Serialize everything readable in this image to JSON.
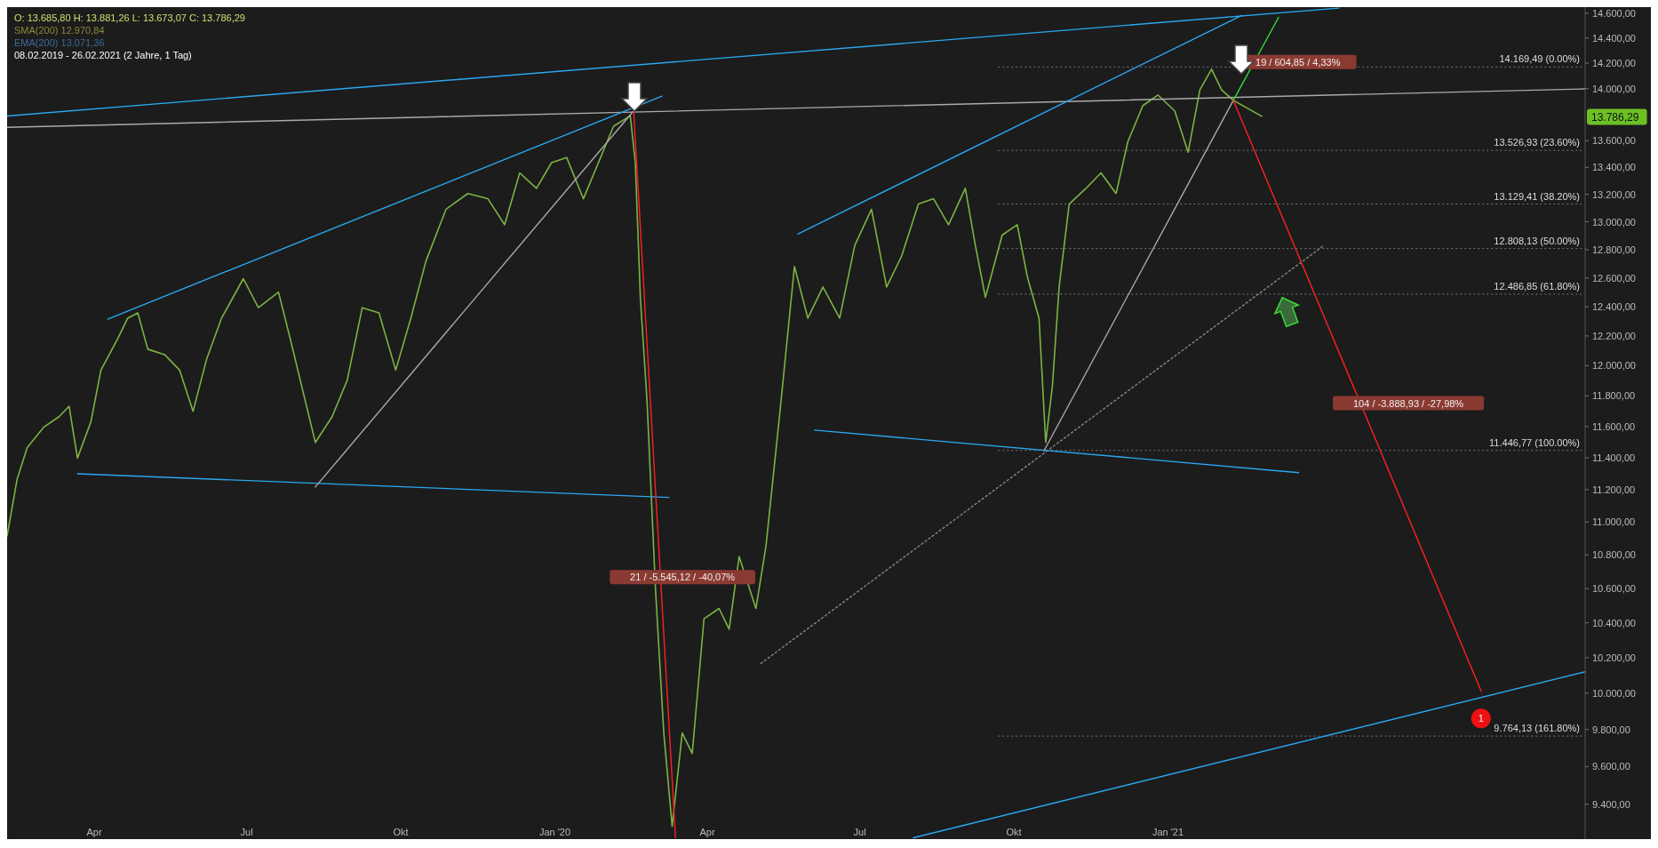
{
  "chart_data": {
    "type": "line",
    "log": "y",
    "xlim": [
      "2019-02-08",
      "2021-09-07"
    ],
    "ylim": [
      9220,
      14650
    ],
    "xticks": [
      {
        "value": "2019-04-01",
        "label": "Apr"
      },
      {
        "value": "2019-07-01",
        "label": "Jul"
      },
      {
        "value": "2019-10-01",
        "label": "Okt"
      },
      {
        "value": "2020-01-01",
        "label": "Jan '20"
      },
      {
        "value": "2020-04-01",
        "label": "Apr"
      },
      {
        "value": "2020-07-01",
        "label": "Jul"
      },
      {
        "value": "2020-10-01",
        "label": "Okt"
      },
      {
        "value": "2021-01-01",
        "label": "Jan '21"
      }
    ],
    "yticks": [
      {
        "value": 9400,
        "label": "9.400,00"
      },
      {
        "value": 9600,
        "label": "9.600,00"
      },
      {
        "value": 9800,
        "label": "9.800,00"
      },
      {
        "value": 10000,
        "label": "10.000,00"
      },
      {
        "value": 10200,
        "label": "10.200,00"
      },
      {
        "value": 10400,
        "label": "10.400,00"
      },
      {
        "value": 10600,
        "label": "10.600,00"
      },
      {
        "value": 10800,
        "label": "10.800,00"
      },
      {
        "value": 11000,
        "label": "11.000,00"
      },
      {
        "value": 11200,
        "label": "11.200,00"
      },
      {
        "value": 11400,
        "label": "11.400,00"
      },
      {
        "value": 11600,
        "label": "11.600,00"
      },
      {
        "value": 11800,
        "label": "11.800,00"
      },
      {
        "value": 12000,
        "label": "12.000,00"
      },
      {
        "value": 12200,
        "label": "12.200,00"
      },
      {
        "value": 12400,
        "label": "12.400,00"
      },
      {
        "value": 12600,
        "label": "12.600,00"
      },
      {
        "value": 12800,
        "label": "12.800,00"
      },
      {
        "value": 13000,
        "label": "13.000,00"
      },
      {
        "value": 13200,
        "label": "13.200,00"
      },
      {
        "value": 13400,
        "label": "13.400,00"
      },
      {
        "value": 13600,
        "label": "13.600,00"
      },
      {
        "value": 14000,
        "label": "14.000,00"
      },
      {
        "value": 14200,
        "label": "14.200,00"
      },
      {
        "value": 14400,
        "label": "14.400,00"
      },
      {
        "value": 14600,
        "label": "14.600,00"
      }
    ],
    "grid": false,
    "marker": "none",
    "series": [
      {
        "color": "#7cb342",
        "x": [
          "2019-02-08",
          "2019-02-14",
          "2019-02-20",
          "2019-03-02",
          "2019-03-11",
          "2019-03-17",
          "2019-03-22",
          "2019-03-30",
          "2019-04-05",
          "2019-04-15",
          "2019-04-21",
          "2019-04-27",
          "2019-05-03",
          "2019-05-13",
          "2019-05-22",
          "2019-05-30",
          "2019-06-07",
          "2019-06-16",
          "2019-06-29",
          "2019-07-08",
          "2019-07-20",
          "2019-07-27",
          "2019-08-05",
          "2019-08-11",
          "2019-08-21",
          "2019-08-30",
          "2019-09-08",
          "2019-09-18",
          "2019-09-28",
          "2019-10-07",
          "2019-10-16",
          "2019-10-28",
          "2019-11-10",
          "2019-11-22",
          "2019-12-02",
          "2019-12-11",
          "2019-12-21",
          "2019-12-30",
          "2020-01-08",
          "2020-01-18",
          "2020-01-27",
          "2020-02-05",
          "2020-02-15",
          "2020-02-18",
          "2020-02-21",
          "2020-02-25",
          "2020-03-01",
          "2020-03-06",
          "2020-03-11",
          "2020-03-17",
          "2020-03-23",
          "2020-03-30",
          "2020-04-08",
          "2020-04-14",
          "2020-04-20",
          "2020-04-30",
          "2020-05-06",
          "2020-05-15",
          "2020-05-23",
          "2020-05-31",
          "2020-06-09",
          "2020-06-19",
          "2020-06-28",
          "2020-07-08",
          "2020-07-17",
          "2020-07-26",
          "2020-08-05",
          "2020-08-14",
          "2020-08-23",
          "2020-09-02",
          "2020-09-08",
          "2020-09-14",
          "2020-09-24",
          "2020-10-03",
          "2020-10-09",
          "2020-10-16",
          "2020-10-20",
          "2020-10-24",
          "2020-10-28",
          "2020-11-03",
          "2020-11-13",
          "2020-11-22",
          "2020-12-01",
          "2020-12-08",
          "2020-12-17",
          "2020-12-26",
          "2021-01-05",
          "2021-01-13",
          "2021-01-20",
          "2021-01-27",
          "2021-02-02",
          "2021-02-09",
          "2021-02-26"
        ],
        "values": [
          10915,
          11266,
          11465,
          11597,
          11664,
          11732,
          11398,
          11630,
          11970,
          12181,
          12321,
          12357,
          12110,
          12074,
          11970,
          11698,
          12040,
          12321,
          12595,
          12393,
          12501,
          12181,
          11766,
          11498,
          11664,
          11902,
          12393,
          12357,
          11970,
          12321,
          12718,
          13091,
          13206,
          13168,
          12979,
          13359,
          13244,
          13435,
          13474,
          13168,
          13435,
          13710,
          13789,
          13435,
          12465,
          11766,
          10604,
          9781,
          9286,
          9781,
          9670,
          10423,
          10483,
          10362,
          10790,
          10483,
          10853,
          11766,
          12681,
          12321,
          12537,
          12321,
          12830,
          13091,
          12537,
          12755,
          13129,
          13168,
          12979,
          13244,
          12830,
          12465,
          12904,
          12979,
          12609,
          12321,
          11498,
          11868,
          12537,
          13129,
          13244,
          13359,
          13206,
          13592,
          13869,
          13950,
          13828,
          13513,
          13990,
          14152,
          13990,
          13909,
          13786.29
        ]
      },
      {
        "color": "#29a8f0",
        "x": [
          "2019-02-08",
          "2021-04-13"
        ],
        "values": [
          13789,
          14642
        ]
      },
      {
        "color": "#aaaaaa",
        "x": [
          "2019-02-08",
          "2021-09-07"
        ],
        "values": [
          13702,
          13998
        ]
      },
      {
        "color": "#29a8f0",
        "x": [
          "2020-08-02",
          "2021-09-07"
        ],
        "values": [
          9227,
          10120
        ]
      },
      {
        "color": "#29a8f0",
        "x": [
          "2019-04-09",
          "2020-03-05"
        ],
        "values": [
          12314,
          13942
        ]
      },
      {
        "color": "#29a8f0",
        "x": [
          "2019-03-22",
          "2020-03-09"
        ],
        "values": [
          11299,
          11151
        ]
      },
      {
        "color": "#aaaaaa",
        "x": [
          "2019-08-11",
          "2020-02-17"
        ],
        "values": [
          11216,
          13828
        ]
      },
      {
        "color": "#ff2020",
        "x": [
          "2020-02-17",
          "2020-03-13"
        ],
        "values": [
          13828,
          9227
        ]
      },
      {
        "color": "#29a8f0",
        "x": [
          "2020-05-25",
          "2021-02-14"
        ],
        "values": [
          12912,
          14583
        ]
      },
      {
        "color": "#29a8f0",
        "x": [
          "2020-06-04",
          "2021-03-20"
        ],
        "values": [
          11577,
          11306
        ]
      },
      {
        "color": "#aaaaaa",
        "x": [
          "2020-10-19",
          "2021-02-09"
        ],
        "values": [
          11445,
          13909
        ]
      },
      {
        "color": "#888888",
        "line_style": "dotted",
        "x": [
          "2020-05-03",
          "2021-04-04"
        ],
        "values": [
          10167,
          12830
        ]
      },
      {
        "color": "#33dd33",
        "x": [
          "2021-02-09",
          "2021-03-08"
        ],
        "values": [
          13909,
          14567
        ]
      },
      {
        "color": "#ff2020",
        "x": [
          "2021-02-09",
          "2021-07-07"
        ],
        "values": [
          13909,
          10010
        ]
      }
    ],
    "ref_lines": [
      {
        "axis": "y",
        "value": 14169.49,
        "label": "14.169,49 (0.00%)",
        "color": "#777777",
        "line_style": "dotted"
      },
      {
        "axis": "y",
        "value": 13526.93,
        "label": "13.526,93 (23.60%)",
        "color": "#777777",
        "line_style": "dotted"
      },
      {
        "axis": "y",
        "value": 13129.41,
        "label": "13.129,41 (38.20%)",
        "color": "#777777",
        "line_style": "dotted"
      },
      {
        "axis": "y",
        "value": 12808.13,
        "label": "12.808,13 (50.00%)",
        "color": "#777777",
        "line_style": "dotted"
      },
      {
        "axis": "y",
        "value": 12486.85,
        "label": "12.486,85 (61.80%)",
        "color": "#777777",
        "line_style": "dotted"
      },
      {
        "axis": "y",
        "value": 11446.77,
        "label": "11.446,77 (100.00%)",
        "color": "#777777",
        "line_style": "dotted"
      },
      {
        "axis": "y",
        "value": 9764.13,
        "label": "9.764,13 (161.80%)",
        "color": "#777777",
        "line_style": "dotted"
      }
    ],
    "annotations": [
      "O: 13.685,80  H: 13.881,26  L: 13.673,07  C: 13.786,29",
      "SMA(200)  12.970,84",
      "EMA(200)  13.071,36",
      "08.02.2019 - 26.02.2021  (2 Jahre, 1 Tag)",
      "19 / 604,85 / 4,33%",
      "104 / -3.888,93 / -27,98%",
      "21 / -5.545,12 / -40,07%",
      "1",
      "13.786,29"
    ]
  }
}
